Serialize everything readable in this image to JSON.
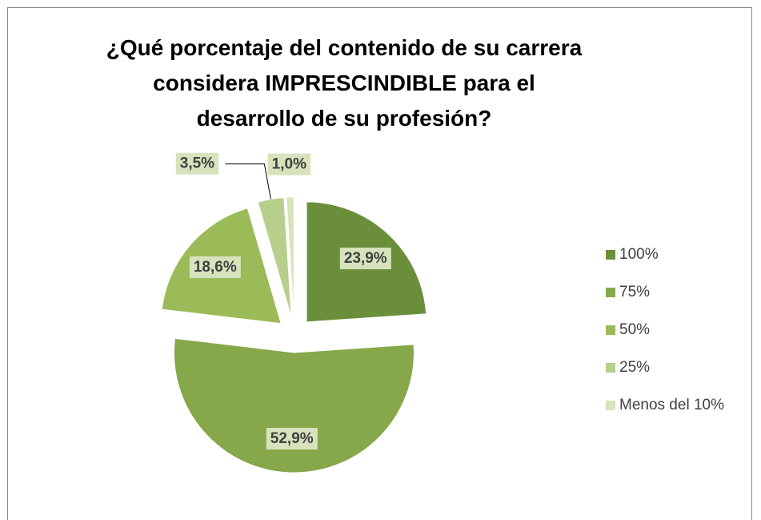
{
  "chart_data": {
    "type": "pie",
    "title": "¿Qué porcentaje del contenido de su carrera considera IMPRESCINDIBLE para el desarrollo de su profesión?",
    "categories": [
      "100%",
      "75%",
      "50%",
      "25%",
      "Menos del 10%"
    ],
    "values": [
      23.9,
      52.9,
      18.6,
      3.5,
      1.0
    ],
    "value_labels": [
      "23,9%",
      "52,9%",
      "18,6%",
      "3,5%",
      "1,0%"
    ],
    "colors": [
      "#6b8e3b",
      "#86a84a",
      "#9bbb59",
      "#b8cf8b",
      "#d6e3bc"
    ],
    "legend": "right"
  }
}
